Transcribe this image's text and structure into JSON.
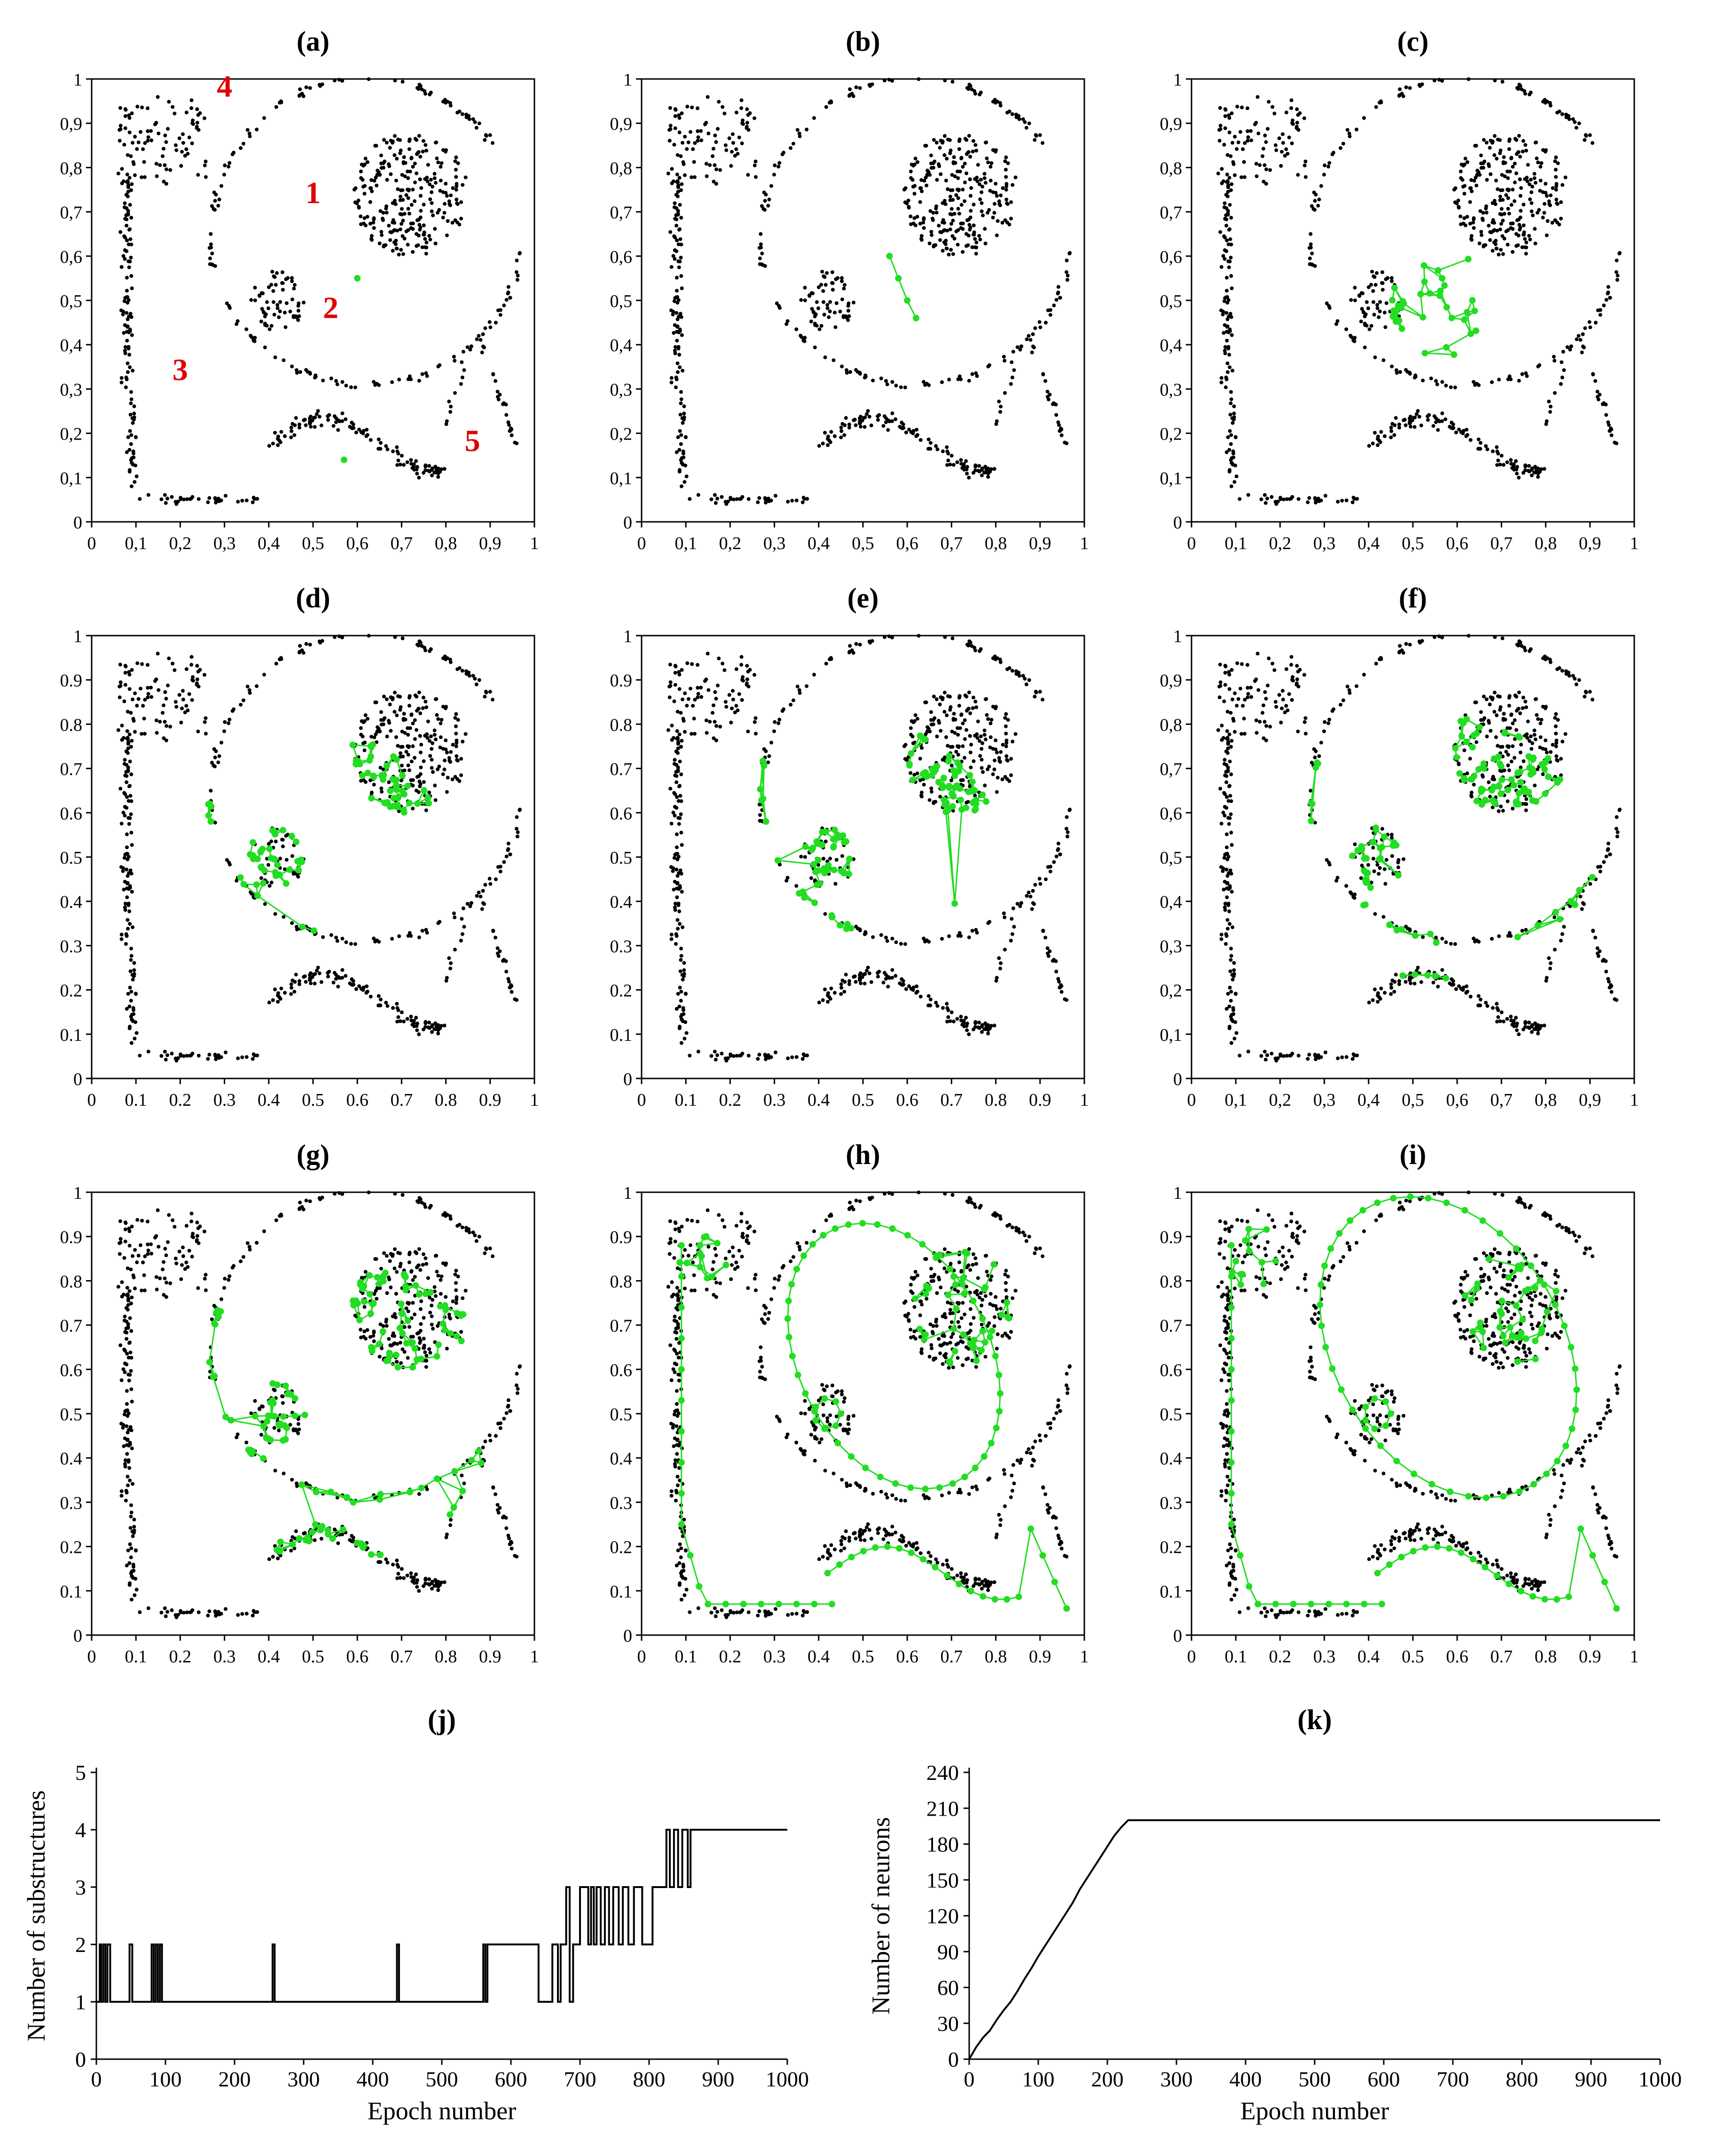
{
  "figure": {
    "colors": {
      "points": "#000000",
      "network": "#22dd22",
      "labels": "#e00000",
      "axes": "#000000"
    }
  },
  "chart_data": [
    {
      "id": "a",
      "panel_label": "a",
      "type": "scatter",
      "title": "(a)",
      "xlim": [
        0,
        1
      ],
      "ylim": [
        0,
        1
      ],
      "xticks": [
        "0",
        "0,1",
        "0,2",
        "0,3",
        "0,4",
        "0,5",
        "0,6",
        "0,7",
        "0,8",
        "0,9",
        "1"
      ],
      "yticks": [
        "0",
        "0,1",
        "0,2",
        "0,3",
        "0,4",
        "0,5",
        "0,6",
        "0,7",
        "0,8",
        "0,9",
        "1"
      ],
      "dataset": "five_structures",
      "network": {
        "nodes": [
          [
            0.6,
            0.55
          ],
          [
            0.57,
            0.14
          ]
        ],
        "edges": []
      },
      "annotations": [
        {
          "text": "1",
          "x": 0.5,
          "y": 0.72
        },
        {
          "text": "2",
          "x": 0.54,
          "y": 0.46
        },
        {
          "text": "3",
          "x": 0.2,
          "y": 0.32
        },
        {
          "text": "4",
          "x": 0.3,
          "y": 0.96
        },
        {
          "text": "5",
          "x": 0.86,
          "y": 0.16
        }
      ]
    },
    {
      "id": "b",
      "panel_label": "b",
      "type": "scatter",
      "title": "(b)",
      "xlim": [
        0,
        1
      ],
      "ylim": [
        0,
        1
      ],
      "xticks": [
        "0",
        "0,1",
        "0,2",
        "0,3",
        "0,4",
        "0,5",
        "0,6",
        "0,7",
        "0,8",
        "0,9",
        "1"
      ],
      "yticks": [
        "0",
        "0,1",
        "0,2",
        "0,3",
        "0,4",
        "0,5",
        "0,6",
        "0,7",
        "0,8",
        "0,9",
        "1"
      ],
      "dataset": "five_structures",
      "network": {
        "nodes": [
          [
            0.56,
            0.6
          ],
          [
            0.58,
            0.55
          ],
          [
            0.6,
            0.5
          ],
          [
            0.62,
            0.46
          ]
        ],
        "edges": [
          [
            0,
            1
          ],
          [
            1,
            2
          ],
          [
            2,
            3
          ]
        ]
      }
    },
    {
      "id": "c",
      "panel_label": "c",
      "type": "scatter",
      "title": "(c)",
      "xlim": [
        0,
        1
      ],
      "ylim": [
        0,
        1
      ],
      "xticks": [
        "0",
        "0,1",
        "0,2",
        "0,3",
        "0,4",
        "0,5",
        "0,6",
        "0,7",
        "0,8",
        "0,9",
        "1"
      ],
      "yticks": [
        "0",
        "0,1",
        "0,2",
        "0,3",
        "0,4",
        "0,5",
        "0,6",
        "0,7",
        "0,8",
        "0,9",
        "1"
      ],
      "dataset": "five_structures",
      "network": {
        "region": {
          "cx": 0.56,
          "cy": 0.49,
          "rx": 0.11,
          "ry": 0.13
        },
        "count": 40
      }
    },
    {
      "id": "d",
      "panel_label": "d",
      "type": "scatter",
      "title": "(d)",
      "xlim": [
        0,
        1
      ],
      "ylim": [
        0,
        1
      ],
      "xticks": [
        "0",
        "0.1",
        "0.2",
        "0.3",
        "0.4",
        "0.5",
        "0.6",
        "0.7",
        "0.8",
        "0.9",
        "1"
      ],
      "yticks": [
        "0",
        "0.1",
        "0.2",
        "0.3",
        "0.4",
        "0.5",
        "0.6",
        "0.7",
        "0.8",
        "0.9",
        "1"
      ],
      "dataset": "five_structures",
      "network": {
        "region": {
          "cx": 0.5,
          "cy": 0.55,
          "rx": 0.28,
          "ry": 0.23
        },
        "count": 95
      }
    },
    {
      "id": "e",
      "panel_label": "e",
      "type": "scatter",
      "title": "(e)",
      "xlim": [
        0,
        1
      ],
      "ylim": [
        0,
        1
      ],
      "xticks": [
        "0",
        "0.1",
        "0.2",
        "0.3",
        "0.4",
        "0.5",
        "0.6",
        "0.7",
        "0.8",
        "0.9",
        "1"
      ],
      "yticks": [
        "0",
        "0.1",
        "0.2",
        "0.3",
        "0.4",
        "0.5",
        "0.6",
        "0.7",
        "0.8",
        "0.9",
        "1"
      ],
      "dataset": "five_structures",
      "network": {
        "region": {
          "cx": 0.5,
          "cy": 0.56,
          "rx": 0.3,
          "ry": 0.24
        },
        "count": 110
      }
    },
    {
      "id": "f",
      "panel_label": "f",
      "type": "scatter",
      "title": "(f)",
      "xlim": [
        0,
        1
      ],
      "ylim": [
        0,
        1
      ],
      "xticks": [
        "0",
        "0,1",
        "0,2",
        "0,3",
        "0,4",
        "0,5",
        "0,6",
        "0,7",
        "0,8",
        "0,9",
        "1"
      ],
      "yticks": [
        "0",
        "0,1",
        "0,2",
        "0,3",
        "0,4",
        "0,5",
        "0,6",
        "0,7",
        "0,8",
        "0,9",
        "1"
      ],
      "dataset": "five_structures",
      "network": {
        "region": {
          "cx": 0.55,
          "cy": 0.52,
          "rx": 0.36,
          "ry": 0.3
        },
        "count": 130
      }
    },
    {
      "id": "g",
      "panel_label": "g",
      "type": "scatter",
      "title": "(g)",
      "xlim": [
        0,
        1
      ],
      "ylim": [
        0,
        1
      ],
      "xticks": [
        "0",
        "0.1",
        "0.2",
        "0.3",
        "0.4",
        "0.5",
        "0.6",
        "0.7",
        "0.8",
        "0.9",
        "1"
      ],
      "yticks": [
        "0",
        "0.1",
        "0.2",
        "0.3",
        "0.4",
        "0.5",
        "0.6",
        "0.7",
        "0.8",
        "0.9",
        "1"
      ],
      "dataset": "five_structures",
      "network": {
        "region": {
          "cx": 0.55,
          "cy": 0.5,
          "rx": 0.38,
          "ry": 0.34
        },
        "count": 150
      }
    },
    {
      "id": "h",
      "panel_label": "h",
      "type": "scatter",
      "title": "(h)",
      "xlim": [
        0,
        1
      ],
      "ylim": [
        0,
        1
      ],
      "xticks": [
        "0",
        "0.1",
        "0.2",
        "0.3",
        "0.4",
        "0.5",
        "0.6",
        "0.7",
        "0.8",
        "0.9",
        "1"
      ],
      "yticks": [
        "0",
        "0.1",
        "0.2",
        "0.3",
        "0.4",
        "0.5",
        "0.6",
        "0.7",
        "0.8",
        "0.9",
        "1"
      ],
      "dataset": "five_structures",
      "network": {
        "fitted": true,
        "outer_ring": {
          "cx": 0.57,
          "cy": 0.63,
          "rx": 0.24,
          "ry": 0.3
        }
      }
    },
    {
      "id": "i",
      "panel_label": "i",
      "type": "scatter",
      "title": "(i)",
      "xlim": [
        0,
        1
      ],
      "ylim": [
        0,
        1
      ],
      "xticks": [
        "0",
        "0.1",
        "0.2",
        "0.3",
        "0.4",
        "0.5",
        "0.6",
        "0.7",
        "0.8",
        "0.9",
        "1"
      ],
      "yticks": [
        "0",
        "0.1",
        "0.2",
        "0.3",
        "0.4",
        "0.5",
        "0.6",
        "0.7",
        "0.8",
        "0.9",
        "1"
      ],
      "dataset": "five_structures",
      "network": {
        "fitted": true,
        "outer_ring": {
          "cx": 0.58,
          "cy": 0.65,
          "rx": 0.29,
          "ry": 0.34
        }
      }
    },
    {
      "id": "j",
      "panel_label": "j",
      "type": "line",
      "title": "(j)",
      "xlabel": "Epoch number",
      "ylabel": "Number of substructures",
      "xlim": [
        0,
        1000
      ],
      "ylim": [
        0,
        5
      ],
      "xticks": [
        "0",
        "100",
        "200",
        "300",
        "400",
        "500",
        "600",
        "700",
        "800",
        "900",
        "1000"
      ],
      "yticks": [
        "0",
        "1",
        "2",
        "3",
        "4",
        "5"
      ],
      "x": [
        0,
        5,
        5,
        7,
        7,
        10,
        10,
        13,
        13,
        16,
        16,
        20,
        20,
        48,
        48,
        52,
        52,
        80,
        80,
        83,
        83,
        86,
        86,
        89,
        89,
        92,
        92,
        95,
        95,
        98,
        98,
        255,
        255,
        258,
        258,
        435,
        435,
        438,
        438,
        560,
        560,
        563,
        563,
        566,
        566,
        640,
        640,
        660,
        660,
        668,
        668,
        672,
        672,
        680,
        680,
        685,
        685,
        690,
        690,
        700,
        700,
        712,
        712,
        716,
        716,
        720,
        720,
        724,
        724,
        730,
        730,
        736,
        736,
        742,
        742,
        748,
        748,
        756,
        756,
        762,
        762,
        770,
        770,
        778,
        778,
        790,
        790,
        805,
        805,
        810,
        810,
        825,
        825,
        830,
        830,
        836,
        836,
        842,
        842,
        848,
        848,
        856,
        856,
        860,
        860,
        1000
      ],
      "y": [
        1,
        1,
        2,
        2,
        1,
        1,
        2,
        2,
        1,
        1,
        2,
        2,
        1,
        1,
        2,
        2,
        1,
        1,
        2,
        2,
        1,
        1,
        2,
        2,
        1,
        1,
        2,
        2,
        1,
        1,
        1,
        1,
        2,
        2,
        1,
        1,
        2,
        2,
        1,
        1,
        2,
        2,
        1,
        1,
        2,
        2,
        1,
        1,
        2,
        2,
        1,
        1,
        2,
        2,
        3,
        3,
        1,
        1,
        2,
        2,
        3,
        3,
        2,
        2,
        3,
        3,
        2,
        2,
        3,
        3,
        2,
        2,
        3,
        3,
        2,
        2,
        3,
        3,
        2,
        2,
        3,
        3,
        2,
        2,
        3,
        3,
        2,
        2,
        3,
        3,
        3,
        3,
        4,
        4,
        3,
        3,
        4,
        4,
        3,
        3,
        4,
        4,
        3,
        3,
        4,
        4
      ]
    },
    {
      "id": "k",
      "panel_label": "k",
      "type": "line",
      "title": "(k)",
      "xlabel": "Epoch number",
      "ylabel": "Number of neurons",
      "xlim": [
        0,
        1000
      ],
      "ylim": [
        0,
        240
      ],
      "xticks": [
        "0",
        "100",
        "200",
        "300",
        "400",
        "500",
        "600",
        "700",
        "800",
        "900",
        "1000"
      ],
      "yticks": [
        "0",
        "30",
        "60",
        "90",
        "120",
        "150",
        "180",
        "210",
        "240"
      ],
      "x": [
        0,
        10,
        20,
        30,
        40,
        50,
        60,
        70,
        80,
        90,
        100,
        110,
        120,
        130,
        140,
        150,
        160,
        170,
        180,
        190,
        200,
        210,
        220,
        230,
        1000
      ],
      "y": [
        0,
        10,
        18,
        24,
        33,
        41,
        48,
        57,
        67,
        76,
        86,
        95,
        104,
        113,
        122,
        131,
        142,
        151,
        160,
        169,
        178,
        187,
        194,
        200,
        200
      ]
    }
  ]
}
